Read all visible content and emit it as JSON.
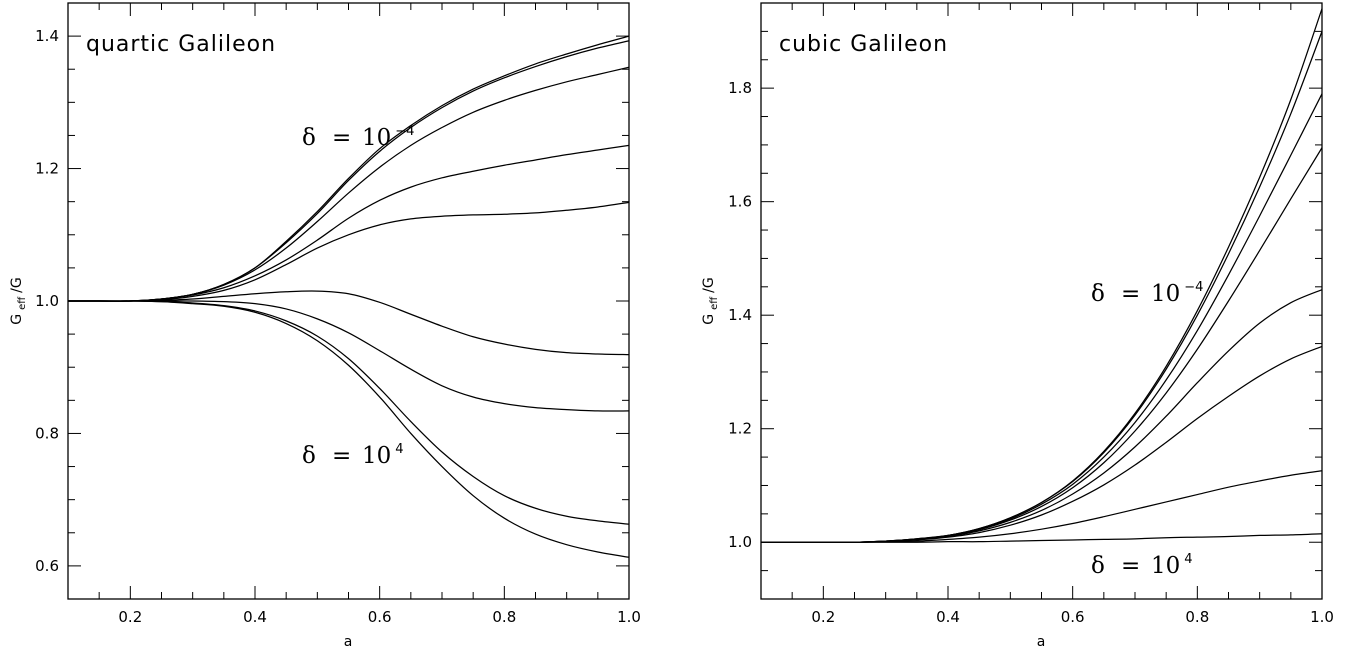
{
  "chart_data": [
    {
      "type": "line",
      "title": "quartic Galileon",
      "xlabel": "a",
      "ylabel_main": "G",
      "ylabel_sub": "eff",
      "ylabel_tail": "/G",
      "xlim": [
        0.1,
        1.0
      ],
      "ylim": [
        0.55,
        1.45
      ],
      "xticks": [
        0.2,
        0.4,
        0.6,
        0.8,
        1.0
      ],
      "xticklabels": [
        "0.2",
        "0.4",
        "0.6",
        "0.8",
        "1.0"
      ],
      "yticks": [
        0.6,
        0.8,
        1.0,
        1.2,
        1.4
      ],
      "yticklabels": [
        "0.6",
        "0.8",
        "1.0",
        "1.2",
        "1.4"
      ],
      "grid": false,
      "annotations": [
        {
          "delta": "δ",
          "eq": "=",
          "base": "10",
          "exp": "−4"
        },
        {
          "delta": "δ",
          "eq": "=",
          "base": "10",
          "exp": "4"
        }
      ],
      "x": [
        0.1,
        0.15,
        0.2,
        0.25,
        0.3,
        0.35,
        0.4,
        0.45,
        0.5,
        0.55,
        0.6,
        0.65,
        0.7,
        0.75,
        0.8,
        0.85,
        0.9,
        0.95,
        1.0
      ],
      "series": [
        {
          "values": [
            1.0,
            1.0,
            1.0,
            1.003,
            1.01,
            1.025,
            1.05,
            1.09,
            1.135,
            1.185,
            1.23,
            1.265,
            1.295,
            1.32,
            1.34,
            1.358,
            1.373,
            1.387,
            1.4
          ]
        },
        {
          "values": [
            1.0,
            1.0,
            1.0,
            1.003,
            1.01,
            1.025,
            1.05,
            1.088,
            1.132,
            1.182,
            1.226,
            1.262,
            1.292,
            1.317,
            1.337,
            1.354,
            1.369,
            1.382,
            1.393
          ]
        },
        {
          "values": [
            1.0,
            1.0,
            1.0,
            1.003,
            1.01,
            1.024,
            1.047,
            1.08,
            1.12,
            1.163,
            1.202,
            1.235,
            1.262,
            1.285,
            1.303,
            1.318,
            1.331,
            1.342,
            1.353
          ]
        },
        {
          "values": [
            1.0,
            1.0,
            1.0,
            1.003,
            1.009,
            1.02,
            1.038,
            1.062,
            1.092,
            1.125,
            1.152,
            1.172,
            1.186,
            1.196,
            1.205,
            1.213,
            1.221,
            1.228,
            1.235
          ]
        },
        {
          "values": [
            1.0,
            1.0,
            1.0,
            1.002,
            1.007,
            1.016,
            1.032,
            1.055,
            1.08,
            1.1,
            1.115,
            1.124,
            1.128,
            1.13,
            1.131,
            1.133,
            1.137,
            1.142,
            1.149
          ]
        },
        {
          "values": [
            1.0,
            1.0,
            1.0,
            1.001,
            1.003,
            1.007,
            1.011,
            1.014,
            1.015,
            1.011,
            0.998,
            0.98,
            0.962,
            0.946,
            0.935,
            0.927,
            0.922,
            0.92,
            0.919
          ]
        },
        {
          "values": [
            1.0,
            1.0,
            1.0,
            1.0,
            1.0,
            0.999,
            0.996,
            0.988,
            0.973,
            0.952,
            0.925,
            0.897,
            0.872,
            0.855,
            0.845,
            0.839,
            0.836,
            0.834,
            0.834
          ]
        },
        {
          "values": [
            1.0,
            1.0,
            1.0,
            0.999,
            0.997,
            0.993,
            0.985,
            0.97,
            0.947,
            0.913,
            0.868,
            0.818,
            0.772,
            0.735,
            0.706,
            0.687,
            0.675,
            0.668,
            0.663
          ]
        },
        {
          "values": [
            1.0,
            1.0,
            1.0,
            0.999,
            0.996,
            0.992,
            0.983,
            0.966,
            0.94,
            0.903,
            0.855,
            0.8,
            0.75,
            0.706,
            0.672,
            0.648,
            0.632,
            0.621,
            0.613
          ]
        }
      ]
    },
    {
      "type": "line",
      "title": "cubic Galileon",
      "xlabel": "a",
      "ylabel_main": "G",
      "ylabel_sub": "eff",
      "ylabel_tail": "/G",
      "xlim": [
        0.1,
        1.0
      ],
      "ylim": [
        0.9,
        1.95
      ],
      "xticks": [
        0.2,
        0.4,
        0.6,
        0.8,
        1.0
      ],
      "xticklabels": [
        "0.2",
        "0.4",
        "0.6",
        "0.8",
        "1.0"
      ],
      "yticks": [
        1.0,
        1.2,
        1.4,
        1.6,
        1.8
      ],
      "yticklabels": [
        "1.0",
        "1.2",
        "1.4",
        "1.6",
        "1.8"
      ],
      "grid": false,
      "annotations": [
        {
          "delta": "δ",
          "eq": "=",
          "base": "10",
          "exp": "−4"
        },
        {
          "delta": "δ",
          "eq": "=",
          "base": "10",
          "exp": "4"
        }
      ],
      "x": [
        0.1,
        0.15,
        0.2,
        0.25,
        0.3,
        0.35,
        0.4,
        0.45,
        0.5,
        0.55,
        0.6,
        0.65,
        0.7,
        0.75,
        0.8,
        0.85,
        0.9,
        0.95,
        1.0
      ],
      "series": [
        {
          "values": [
            1.0,
            1.0,
            1.0,
            1.0,
            1.002,
            1.006,
            1.012,
            1.024,
            1.043,
            1.07,
            1.108,
            1.16,
            1.227,
            1.31,
            1.408,
            1.52,
            1.643,
            1.78,
            1.94
          ]
        },
        {
          "values": [
            1.0,
            1.0,
            1.0,
            1.0,
            1.002,
            1.006,
            1.012,
            1.024,
            1.043,
            1.07,
            1.107,
            1.158,
            1.224,
            1.305,
            1.4,
            1.508,
            1.626,
            1.755,
            1.9
          ]
        },
        {
          "values": [
            1.0,
            1.0,
            1.0,
            1.0,
            1.002,
            1.006,
            1.012,
            1.023,
            1.041,
            1.067,
            1.102,
            1.15,
            1.211,
            1.286,
            1.373,
            1.471,
            1.575,
            1.682,
            1.79
          ]
        },
        {
          "values": [
            1.0,
            1.0,
            1.0,
            1.0,
            1.002,
            1.005,
            1.011,
            1.022,
            1.039,
            1.063,
            1.096,
            1.14,
            1.196,
            1.263,
            1.34,
            1.425,
            1.514,
            1.605,
            1.695
          ]
        },
        {
          "values": [
            1.0,
            1.0,
            1.0,
            1.0,
            1.002,
            1.005,
            1.01,
            1.02,
            1.035,
            1.056,
            1.085,
            1.122,
            1.168,
            1.222,
            1.281,
            1.337,
            1.386,
            1.422,
            1.445
          ]
        },
        {
          "values": [
            1.0,
            1.0,
            1.0,
            1.0,
            1.001,
            1.004,
            1.009,
            1.017,
            1.03,
            1.048,
            1.072,
            1.101,
            1.136,
            1.176,
            1.218,
            1.257,
            1.293,
            1.323,
            1.345
          ]
        },
        {
          "values": [
            1.0,
            1.0,
            1.0,
            1.0,
            1.001,
            1.002,
            1.005,
            1.009,
            1.015,
            1.023,
            1.033,
            1.045,
            1.058,
            1.071,
            1.084,
            1.097,
            1.108,
            1.118,
            1.126
          ]
        },
        {
          "values": [
            1.0,
            1.0,
            1.0,
            1.0,
            1.0,
            1.0,
            1.001,
            1.001,
            1.002,
            1.003,
            1.004,
            1.005,
            1.006,
            1.008,
            1.009,
            1.01,
            1.012,
            1.013,
            1.015
          ]
        }
      ]
    }
  ]
}
